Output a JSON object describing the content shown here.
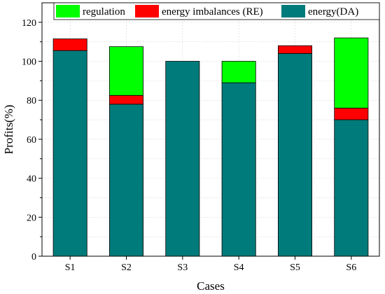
{
  "chart_data": {
    "type": "bar",
    "stacked": true,
    "categories": [
      "S1",
      "S2",
      "S3",
      "S4",
      "S5",
      "S6"
    ],
    "series": [
      {
        "name": "energy(DA)",
        "color": "#007b7b",
        "values": [
          105.5,
          78,
          100,
          89,
          104,
          70
        ]
      },
      {
        "name": "energy imbalances (RE)",
        "color": "#ff0000",
        "values": [
          6,
          4.5,
          0,
          0,
          4,
          6
        ]
      },
      {
        "name": "regulation",
        "color": "#00ff00",
        "values": [
          0,
          25,
          0,
          11,
          0,
          36
        ]
      }
    ],
    "legend_order": [
      2,
      1,
      0
    ],
    "xlabel": "Cases",
    "ylabel": "Profits(%)",
    "ylim": [
      0,
      130
    ],
    "yticks": [
      0,
      20,
      40,
      60,
      80,
      100,
      120
    ],
    "grid": true,
    "legend_position": "top"
  }
}
